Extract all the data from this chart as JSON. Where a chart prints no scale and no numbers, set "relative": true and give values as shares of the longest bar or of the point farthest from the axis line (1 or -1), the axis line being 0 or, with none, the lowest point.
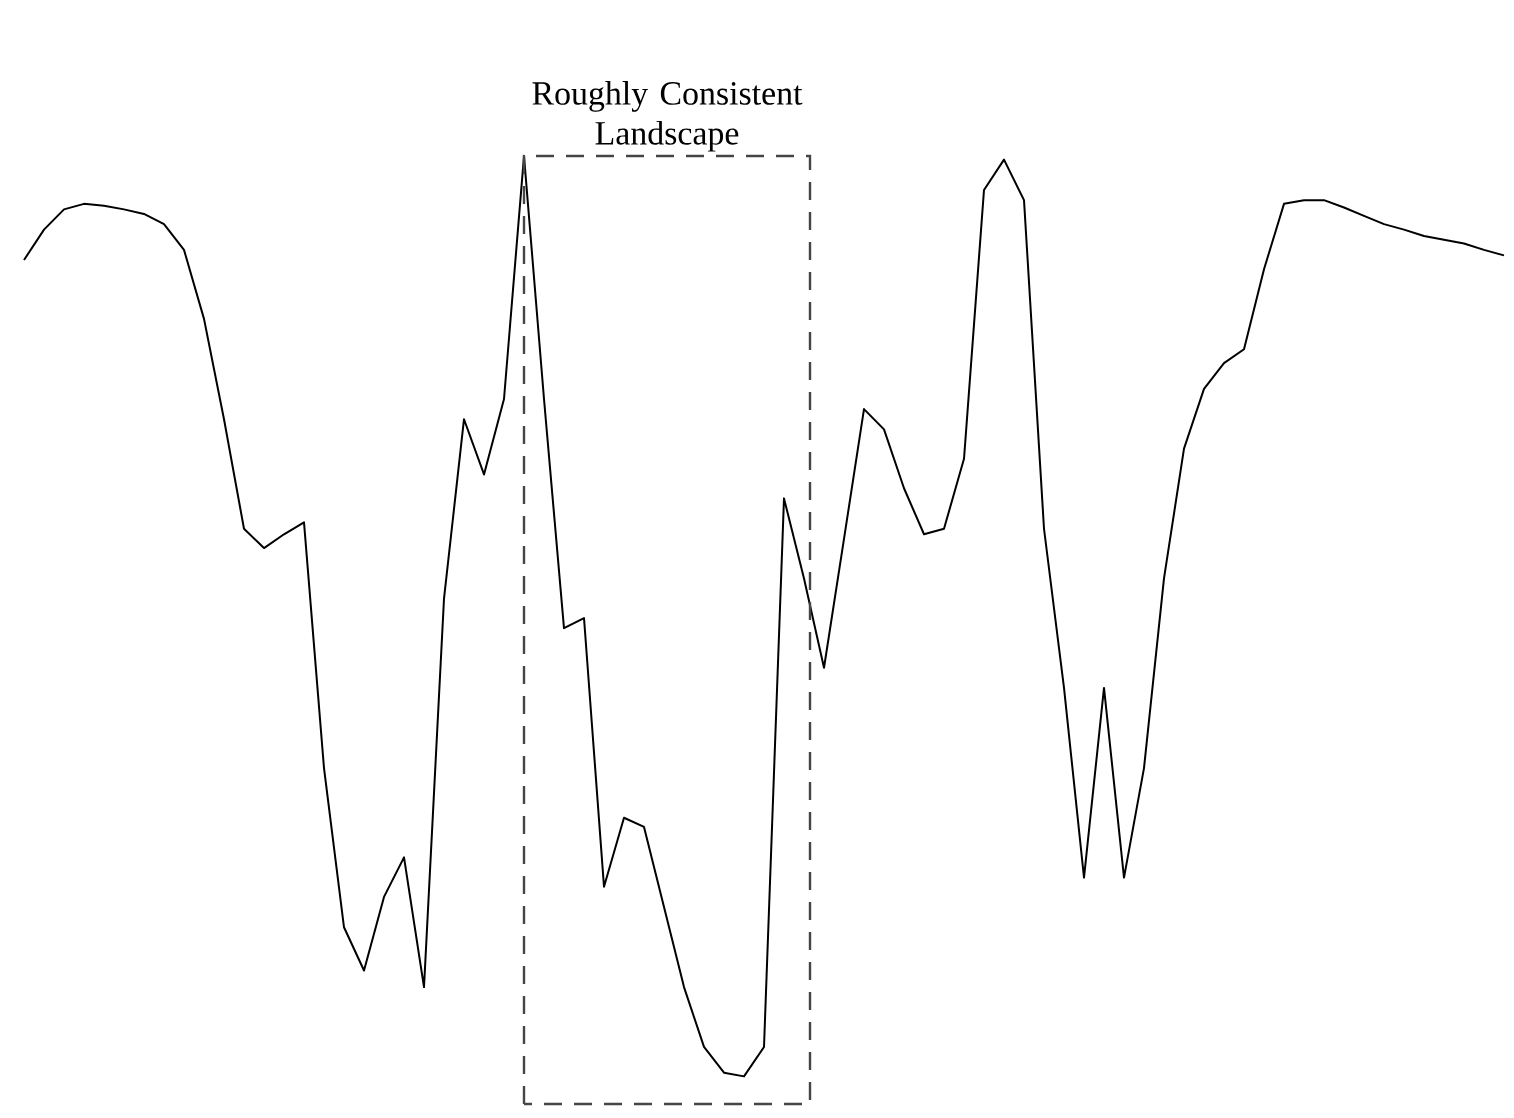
{
  "chart_data": {
    "type": "line",
    "relative": true,
    "categories": [
      null,
      null,
      null,
      null,
      null,
      null,
      null,
      null,
      null,
      null,
      null,
      null,
      null,
      null,
      null,
      null,
      null,
      null,
      null,
      null,
      null,
      null,
      null,
      null,
      null,
      null,
      null,
      null,
      null,
      null,
      null,
      null,
      null,
      null,
      null,
      null,
      null,
      null,
      null,
      null,
      null,
      null,
      null,
      null,
      null,
      null,
      null,
      null,
      null,
      null,
      null,
      null,
      null,
      null,
      null,
      null,
      null,
      null,
      null,
      null,
      null,
      null,
      null,
      null,
      null,
      null,
      null,
      null,
      null,
      null,
      null,
      null,
      null,
      null,
      null
    ],
    "series": [
      {
        "color": "#000000",
        "values": [
          0.887,
          0.92,
          0.942,
          0.948,
          0.946,
          0.942,
          0.937,
          0.926,
          0.898,
          0.823,
          0.714,
          0.595,
          0.574,
          0.589,
          0.602,
          0.335,
          0.162,
          0.115,
          0.195,
          0.238,
          0.097,
          0.519,
          0.714,
          0.654,
          0.736,
          1,
          0.736,
          0.487,
          0.498,
          0.206,
          0.281,
          0.271,
          0.184,
          0.097,
          0.032,
          0.004,
          0,
          0.032,
          0.628,
          0.541,
          0.444,
          0.584,
          0.725,
          0.703,
          0.639,
          0.589,
          0.595,
          0.671,
          0.963,
          0.996,
          0.952,
          0.595,
          0.422,
          0.216,
          0.422,
          0.216,
          0.335,
          0.541,
          0.682,
          0.747,
          0.775,
          0.79,
          0.877,
          0.948,
          0.952,
          0.952,
          0.944,
          0.935,
          0.926,
          0.92,
          0.913,
          0.909,
          0.905,
          0.898,
          0.892
        ]
      }
    ],
    "annotations": [
      "Roughly Consistent Landscape"
    ],
    "marker": "none",
    "line_style": "solid"
  }
}
